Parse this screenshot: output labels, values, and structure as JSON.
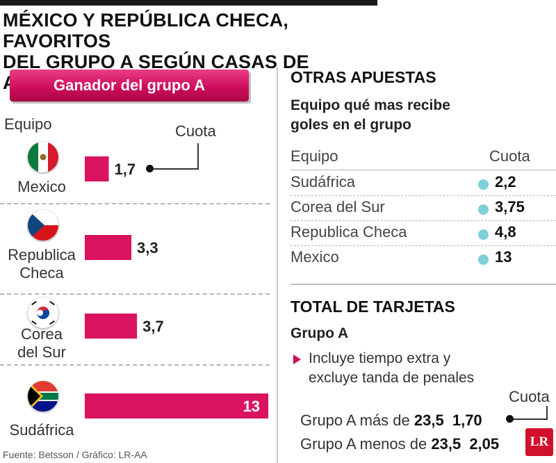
{
  "title_line1": "MÉXICO Y REPÚBLICA CHECA, FAVORITOS",
  "title_line2": "DEL GRUPO A SEGÚN CASAS DE APUESTAS",
  "colors": {
    "bar": "#d9135f",
    "pill": "#cc0c5b",
    "dot": "#7ecfd8",
    "logo": "#d0112b"
  },
  "chart_data": {
    "type": "bar",
    "orientation": "horizontal",
    "title": "Ganador del grupo A",
    "category_label": "Equipo",
    "value_label": "Cuota",
    "categories": [
      "Mexico",
      "Republica Checa",
      "Corea del Sur",
      "Sudáfrica"
    ],
    "values": [
      1.7,
      3.3,
      3.7,
      13
    ],
    "value_labels": [
      "1,7",
      "3,3",
      "3,7",
      "13"
    ],
    "flags": [
      "mexico-flag",
      "czech-flag",
      "south-korea-flag",
      "south-africa-flag"
    ]
  },
  "left": {
    "pill_label": "Ganador del grupo A",
    "equipo_label": "Equipo",
    "cuota_label": "Cuota",
    "countries": [
      {
        "line1": "Mexico",
        "line2": ""
      },
      {
        "line1": "Republica",
        "line2": "Checa"
      },
      {
        "line1": "Corea",
        "line2": "del Sur"
      },
      {
        "line1": "Sudáfrica",
        "line2": ""
      }
    ]
  },
  "right": {
    "otras_title": "OTRAS APUESTAS",
    "goals_sub_line1": "Equipo qué mas recibe",
    "goals_sub_line2": "goles en el grupo",
    "table_header_team": "Equipo",
    "table_header_odds": "Cuota",
    "goals_rows": [
      {
        "team": "Sudáfrica",
        "odds": "2,2"
      },
      {
        "team": "Corea del Sur",
        "odds": "3,75"
      },
      {
        "team": "Republica Checa",
        "odds": "4,8"
      },
      {
        "team": "Mexico",
        "odds": "13"
      }
    ],
    "cards_title": "TOTAL DE TARJETAS",
    "cards_sub": "Grupo A",
    "note_line1": "Incluye tiempo extra y",
    "note_line2": "excluye tanda de penales",
    "cards_cuota_label": "Cuota",
    "bets": [
      {
        "text": "Grupo A más de",
        "line": "23,5",
        "odds": "1,70"
      },
      {
        "text": "Grupo A menos de",
        "line": "23,5",
        "odds": "2,05"
      }
    ],
    "logo_text": "LR"
  },
  "source": "Fuente: Betsson / Gráfico: LR-AA"
}
